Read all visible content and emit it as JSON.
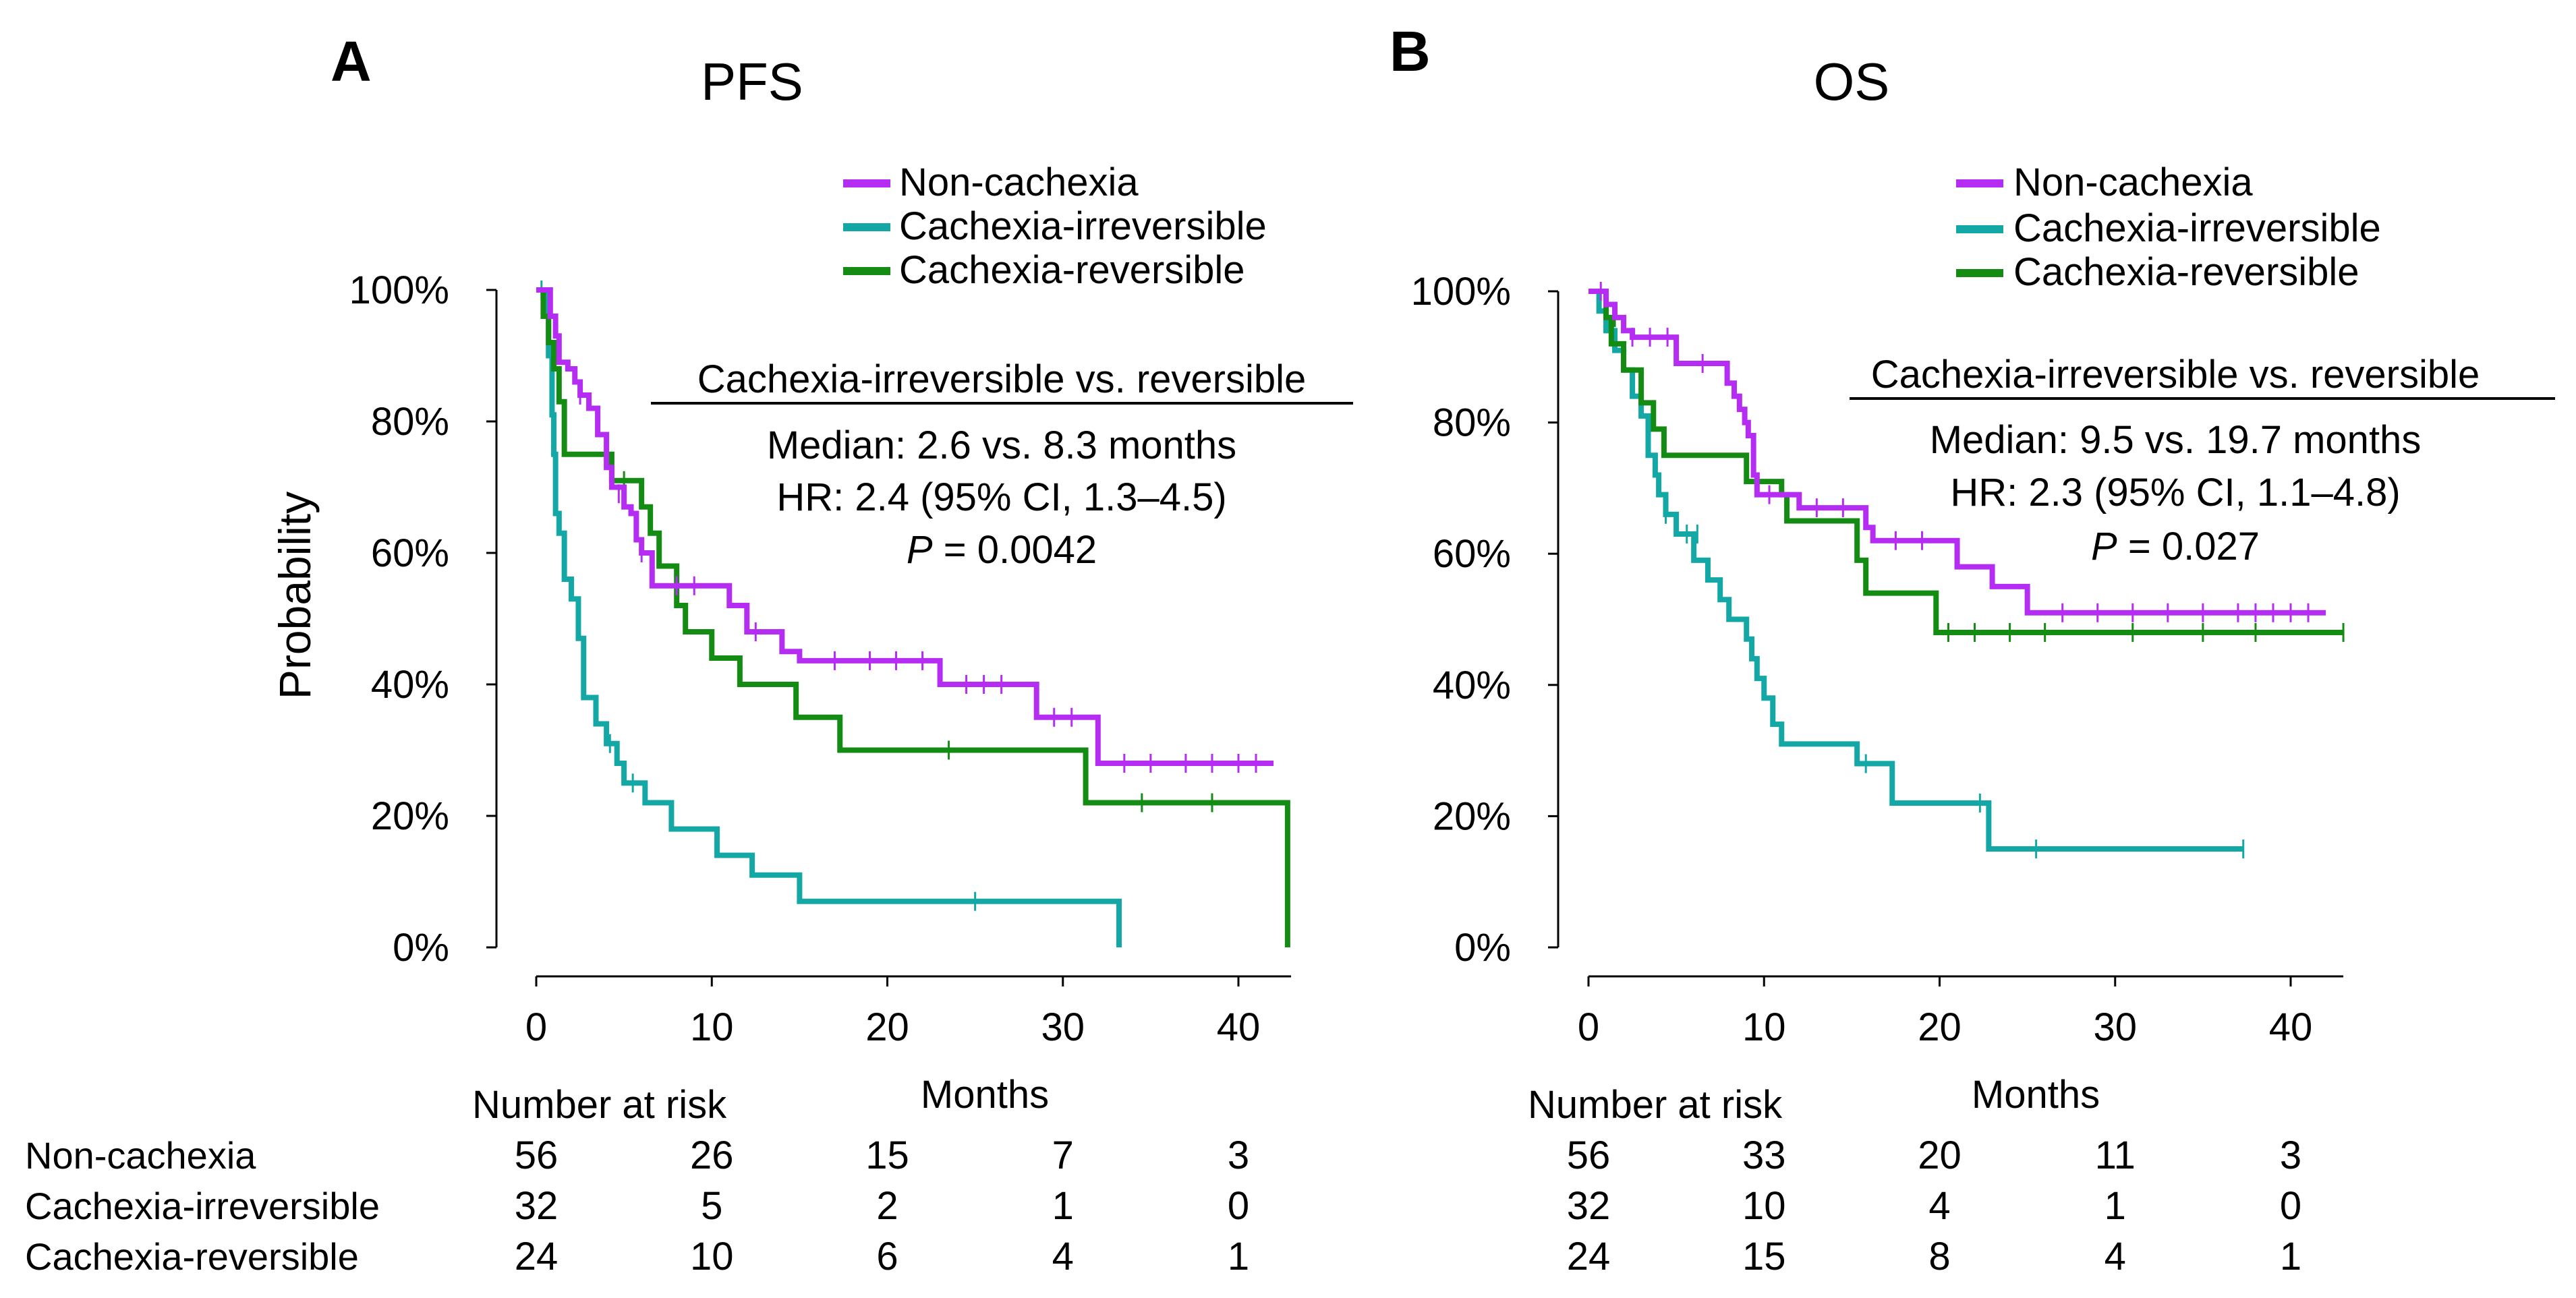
{
  "colors": {
    "Non-cachexia": "#b52df3",
    "Cachexia-irreversible": "#13a8a6",
    "Cachexia-reversible": "#148c14",
    "axis": "#000000"
  },
  "risk_table_label": "Number at risk",
  "chart_data": [
    {
      "type": "line",
      "panel_letter": "A",
      "title": "PFS",
      "xlabel": "Months",
      "ylabel": "Probability",
      "xlim": [
        0,
        43
      ],
      "ylim": [
        0,
        100
      ],
      "x_ticks": [
        "0",
        "10",
        "20",
        "30",
        "40"
      ],
      "y_ticks": [
        "0%",
        "20%",
        "40%",
        "60%",
        "80%",
        "100%"
      ],
      "legend": [
        "Non-cachexia",
        "Cachexia-irreversible",
        "Cachexia-reversible"
      ],
      "annotation": {
        "title": "Cachexia-irreversible vs. reversible",
        "median": "Median: 2.6 vs. 8.3 months",
        "hr": "HR: 2.4 (95% CI, 1.3–4.5)",
        "p_label": "P",
        "p_value": " = 0.0042"
      },
      "series": [
        {
          "name": "Non-cachexia",
          "end": 42,
          "steps": [
            [
              0,
              100
            ],
            [
              0.8,
              96
            ],
            [
              1.1,
              93
            ],
            [
              1.3,
              89
            ],
            [
              1.8,
              88
            ],
            [
              2.2,
              86
            ],
            [
              2.5,
              84
            ],
            [
              3.0,
              82
            ],
            [
              3.5,
              78
            ],
            [
              4.0,
              73
            ],
            [
              4.3,
              70
            ],
            [
              5.0,
              67
            ],
            [
              5.4,
              66
            ],
            [
              5.7,
              62
            ],
            [
              6.0,
              60
            ],
            [
              6.6,
              55
            ],
            [
              10.0,
              55
            ],
            [
              11.0,
              52
            ],
            [
              12.0,
              48
            ],
            [
              14.0,
              45
            ],
            [
              15.0,
              43.6
            ],
            [
              22.5,
              43.6
            ],
            [
              23.0,
              40
            ],
            [
              28.0,
              40
            ],
            [
              28.5,
              35
            ],
            [
              31.5,
              35
            ],
            [
              32.0,
              28
            ],
            [
              42.0,
              28
            ]
          ],
          "censor": [
            [
              2.5,
              84
            ],
            [
              4.7,
              69
            ],
            [
              6.0,
              60
            ],
            [
              8,
              55
            ],
            [
              9,
              55
            ],
            [
              12.5,
              48
            ],
            [
              17,
              43.6
            ],
            [
              19,
              43.6
            ],
            [
              20.5,
              43.6
            ],
            [
              22,
              43.6
            ],
            [
              24.5,
              40
            ],
            [
              25.5,
              40
            ],
            [
              26.5,
              40
            ],
            [
              29.5,
              35
            ],
            [
              30.5,
              35
            ],
            [
              33.5,
              28
            ],
            [
              35,
              28
            ],
            [
              37,
              28
            ],
            [
              38.5,
              28
            ],
            [
              40,
              28
            ],
            [
              41,
              28
            ]
          ]
        },
        {
          "name": "Cachexia-irreversible",
          "end": 33.2,
          "steps": [
            [
              0,
              100
            ],
            [
              0.5,
              97
            ],
            [
              0.7,
              90
            ],
            [
              0.9,
              81
            ],
            [
              1.0,
              75
            ],
            [
              1.1,
              66
            ],
            [
              1.3,
              63
            ],
            [
              1.6,
              56
            ],
            [
              2.0,
              53
            ],
            [
              2.4,
              47
            ],
            [
              2.7,
              38
            ],
            [
              3.4,
              34
            ],
            [
              4.0,
              31
            ],
            [
              4.6,
              28
            ],
            [
              5.0,
              25
            ],
            [
              6.0,
              25
            ],
            [
              6.2,
              22
            ],
            [
              7.5,
              22
            ],
            [
              7.7,
              18
            ],
            [
              10.0,
              18
            ],
            [
              10.3,
              14
            ],
            [
              12.0,
              14
            ],
            [
              12.3,
              11
            ],
            [
              14.6,
              11
            ],
            [
              15.0,
              7
            ],
            [
              33.2,
              7
            ],
            [
              33.2,
              0
            ]
          ],
          "censor": [
            [
              0.3,
              100
            ],
            [
              4.2,
              31
            ],
            [
              5.5,
              25
            ],
            [
              25,
              7
            ]
          ]
        },
        {
          "name": "Cachexia-reversible",
          "end": 42.8,
          "steps": [
            [
              0,
              100
            ],
            [
              0.4,
              96
            ],
            [
              0.7,
              92
            ],
            [
              1.0,
              88
            ],
            [
              1.3,
              83
            ],
            [
              1.6,
              75
            ],
            [
              4.0,
              75
            ],
            [
              4.3,
              71
            ],
            [
              5.5,
              71
            ],
            [
              6.0,
              67
            ],
            [
              6.5,
              63
            ],
            [
              7.0,
              58
            ],
            [
              8.0,
              52
            ],
            [
              8.5,
              48
            ],
            [
              9.8,
              48
            ],
            [
              10.0,
              44
            ],
            [
              11.3,
              44
            ],
            [
              11.6,
              40
            ],
            [
              14.5,
              40
            ],
            [
              14.8,
              35
            ],
            [
              17.0,
              35
            ],
            [
              17.3,
              30
            ],
            [
              31.0,
              30
            ],
            [
              31.3,
              22
            ],
            [
              42.8,
              22
            ],
            [
              42.8,
              0
            ]
          ],
          "censor": [
            [
              4.0,
              75
            ],
            [
              5.0,
              71
            ],
            [
              23.5,
              30
            ],
            [
              34.5,
              22
            ],
            [
              38.5,
              22
            ]
          ]
        }
      ],
      "risk_table": [
        {
          "name": "Non-cachexia",
          "counts": [
            "56",
            "26",
            "15",
            "7",
            "3"
          ]
        },
        {
          "name": "Cachexia-irreversible",
          "counts": [
            "32",
            "5",
            "2",
            "1",
            "0"
          ]
        },
        {
          "name": "Cachexia-reversible",
          "counts": [
            "24",
            "10",
            "6",
            "4",
            "1"
          ]
        }
      ]
    },
    {
      "type": "line",
      "panel_letter": "B",
      "title": "OS",
      "xlabel": "Months",
      "ylabel": "",
      "xlim": [
        0,
        43
      ],
      "ylim": [
        0,
        100
      ],
      "x_ticks": [
        "0",
        "10",
        "20",
        "30",
        "40"
      ],
      "y_ticks": [
        "0%",
        "20%",
        "40%",
        "60%",
        "80%",
        "100%"
      ],
      "legend": [
        "Non-cachexia",
        "Cachexia-irreversible",
        "Cachexia-reversible"
      ],
      "annotation": {
        "title": "Cachexia-irreversible vs. reversible",
        "median": "Median: 9.5 vs. 19.7 months",
        "hr": "HR: 2.3 (95% CI, 1.1–4.8)",
        "p_label": "P",
        "p_value": " = 0.027"
      },
      "series": [
        {
          "name": "Non-cachexia",
          "end": 42,
          "steps": [
            [
              0,
              100
            ],
            [
              1.0,
              98
            ],
            [
              1.5,
              96
            ],
            [
              2.0,
              94
            ],
            [
              2.5,
              93
            ],
            [
              4.5,
              93
            ],
            [
              5.0,
              89
            ],
            [
              7.5,
              89
            ],
            [
              7.9,
              86
            ],
            [
              8.3,
              84
            ],
            [
              8.6,
              82
            ],
            [
              8.9,
              80
            ],
            [
              9.1,
              78
            ],
            [
              9.4,
              72
            ],
            [
              9.6,
              69
            ],
            [
              11.5,
              69
            ],
            [
              12.0,
              67
            ],
            [
              15.5,
              67
            ],
            [
              15.8,
              64
            ],
            [
              16.2,
              62
            ],
            [
              20.5,
              62
            ],
            [
              21.0,
              58
            ],
            [
              22.5,
              58
            ],
            [
              23.0,
              55
            ],
            [
              24.5,
              55
            ],
            [
              25.0,
              51
            ],
            [
              42.0,
              51
            ]
          ],
          "censor": [
            [
              0.7,
              100
            ],
            [
              2.5,
              93
            ],
            [
              3.5,
              93
            ],
            [
              4.5,
              93
            ],
            [
              6.5,
              89
            ],
            [
              10.3,
              69
            ],
            [
              13,
              67
            ],
            [
              14.5,
              67
            ],
            [
              17.5,
              62
            ],
            [
              19,
              62
            ],
            [
              27,
              51
            ],
            [
              29,
              51
            ],
            [
              31,
              51
            ],
            [
              33,
              51
            ],
            [
              35,
              51
            ],
            [
              37,
              51
            ],
            [
              38,
              51
            ],
            [
              39,
              51
            ],
            [
              40,
              51
            ],
            [
              41,
              51
            ]
          ]
        },
        {
          "name": "Cachexia-irreversible",
          "end": 37.3,
          "steps": [
            [
              0,
              100
            ],
            [
              0.6,
              97
            ],
            [
              1.0,
              94
            ],
            [
              1.5,
              91
            ],
            [
              2.0,
              88
            ],
            [
              2.5,
              84
            ],
            [
              3.0,
              81
            ],
            [
              3.4,
              75
            ],
            [
              3.8,
              72
            ],
            [
              4.0,
              69
            ],
            [
              4.4,
              66
            ],
            [
              5.0,
              63
            ],
            [
              6.0,
              59
            ],
            [
              6.8,
              56
            ],
            [
              7.5,
              53
            ],
            [
              8.0,
              50
            ],
            [
              9.0,
              47
            ],
            [
              9.3,
              44
            ],
            [
              9.6,
              41
            ],
            [
              10.0,
              38
            ],
            [
              10.5,
              34
            ],
            [
              11.0,
              31
            ],
            [
              15.0,
              31
            ],
            [
              15.3,
              28
            ],
            [
              17.0,
              28
            ],
            [
              17.3,
              22
            ],
            [
              22.5,
              22
            ],
            [
              22.8,
              15
            ],
            [
              37.3,
              15
            ]
          ],
          "censor": [
            [
              4.4,
              66
            ],
            [
              5.6,
              63
            ],
            [
              6.2,
              63
            ],
            [
              15.8,
              28
            ],
            [
              22.3,
              22
            ],
            [
              25.5,
              15
            ],
            [
              37.3,
              15
            ]
          ]
        },
        {
          "name": "Cachexia-reversible",
          "end": 43,
          "steps": [
            [
              0,
              100
            ],
            [
              1.0,
              96
            ],
            [
              1.3,
              92
            ],
            [
              2.0,
              88
            ],
            [
              3.0,
              83
            ],
            [
              3.7,
              79
            ],
            [
              4.0,
              79
            ],
            [
              4.3,
              75
            ],
            [
              8.5,
              75
            ],
            [
              9.0,
              71
            ],
            [
              11.0,
              69
            ],
            [
              11.3,
              65
            ],
            [
              15.0,
              65
            ],
            [
              15.3,
              59
            ],
            [
              15.8,
              54
            ],
            [
              19.5,
              54
            ],
            [
              19.8,
              48
            ],
            [
              43.0,
              48
            ]
          ],
          "censor": [
            [
              1.5,
              96
            ],
            [
              20.5,
              48
            ],
            [
              22,
              48
            ],
            [
              24,
              48
            ],
            [
              26,
              48
            ],
            [
              31,
              48
            ],
            [
              35,
              48
            ],
            [
              38,
              48
            ],
            [
              43,
              48
            ]
          ]
        }
      ],
      "risk_table": [
        {
          "name": "Non-cachexia",
          "counts": [
            "56",
            "33",
            "20",
            "11",
            "3"
          ]
        },
        {
          "name": "Cachexia-irreversible",
          "counts": [
            "32",
            "10",
            "4",
            "1",
            "0"
          ]
        },
        {
          "name": "Cachexia-reversible",
          "counts": [
            "24",
            "15",
            "8",
            "4",
            "1"
          ]
        }
      ]
    }
  ]
}
